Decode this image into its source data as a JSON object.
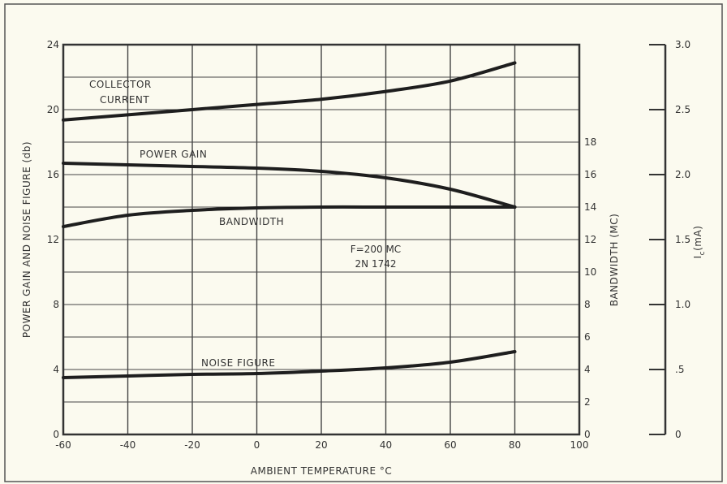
{
  "chart_data": {
    "type": "line",
    "xlabel": "AMBIENT TEMPERATURE °C",
    "x_ticks": [
      "-60",
      "-40",
      "-20",
      "0",
      "20",
      "40",
      "60",
      "80",
      "100"
    ],
    "xlim": [
      -60,
      100
    ],
    "left_axis": {
      "label": "POWER GAIN AND NOISE FIGURE (db)",
      "ticks": [
        "0",
        "4",
        "8",
        "12",
        "16",
        "20",
        "24"
      ],
      "ylim": [
        0,
        24
      ]
    },
    "bandwidth_axis": {
      "label": "BANDWIDTH (MC)",
      "ticks": [
        "0",
        "2",
        "4",
        "6",
        "8",
        "10",
        "12",
        "14",
        "16",
        "18"
      ],
      "ylim": [
        0,
        24
      ]
    },
    "ic_axis": {
      "label_main": "I",
      "label_sub": "c",
      "label_unit": "(mA)",
      "ticks": [
        "0",
        ".5",
        "1.0",
        "1.5",
        "2.0",
        "2.5",
        "3.0"
      ],
      "ylim": [
        0,
        3.0
      ]
    },
    "annotation": [
      "F=200 MC",
      "2N 1742"
    ],
    "grid": true,
    "series": [
      {
        "name": "COLLECTOR CURRENT",
        "axis": "ic",
        "label_lines": [
          "COLLECTOR",
          "CURRENT"
        ],
        "x": [
          -60,
          -40,
          -20,
          0,
          20,
          40,
          60,
          80
        ],
        "y": [
          2.42,
          2.46,
          2.5,
          2.54,
          2.58,
          2.64,
          2.72,
          2.86
        ]
      },
      {
        "name": "POWER GAIN",
        "axis": "left",
        "label_lines": [
          "POWER GAIN"
        ],
        "x": [
          -60,
          -40,
          -20,
          0,
          20,
          40,
          60,
          80
        ],
        "y": [
          16.7,
          16.6,
          16.5,
          16.4,
          16.2,
          15.8,
          15.1,
          14.0
        ]
      },
      {
        "name": "BANDWIDTH",
        "axis": "bandwidth",
        "label_lines": [
          "BANDWIDTH"
        ],
        "x": [
          -60,
          -40,
          -20,
          0,
          20,
          40,
          60,
          80
        ],
        "y": [
          12.8,
          13.5,
          13.8,
          13.95,
          14.0,
          14.0,
          14.0,
          14.0
        ]
      },
      {
        "name": "NOISE FIGURE",
        "axis": "left",
        "label_lines": [
          "NOISE FIGURE"
        ],
        "x": [
          -60,
          -40,
          -20,
          0,
          20,
          40,
          60,
          80
        ],
        "y": [
          3.5,
          3.6,
          3.7,
          3.75,
          3.9,
          4.1,
          4.45,
          5.1
        ]
      }
    ]
  }
}
